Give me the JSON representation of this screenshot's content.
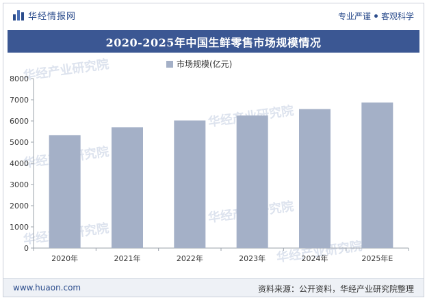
{
  "header": {
    "brand_name": "华经情报网",
    "slogan_left": "专业严谨",
    "slogan_right": "客观科学"
  },
  "watermark_text": "华经产业研究院",
  "chart_data": {
    "type": "bar",
    "title": "2020-2025年中国生鲜零售市场规模情况",
    "categories": [
      "2020年",
      "2021年",
      "2022年",
      "2023年",
      "2024年",
      "2025年E"
    ],
    "series": [
      {
        "name": "市场规模(亿元)",
        "values": [
          5325,
          5700,
          6020,
          6260,
          6560,
          6870
        ],
        "color": "#a4b0c7"
      }
    ],
    "yticks": [
      0,
      1000,
      2000,
      3000,
      4000,
      5000,
      6000,
      7000,
      8000
    ],
    "ylim": [
      0,
      8000
    ],
    "legend_position": "top-center",
    "grid": false
  },
  "footer": {
    "website": "www.huaon.com",
    "source": "资料来源：公开资料，华经产业研究院整理"
  }
}
